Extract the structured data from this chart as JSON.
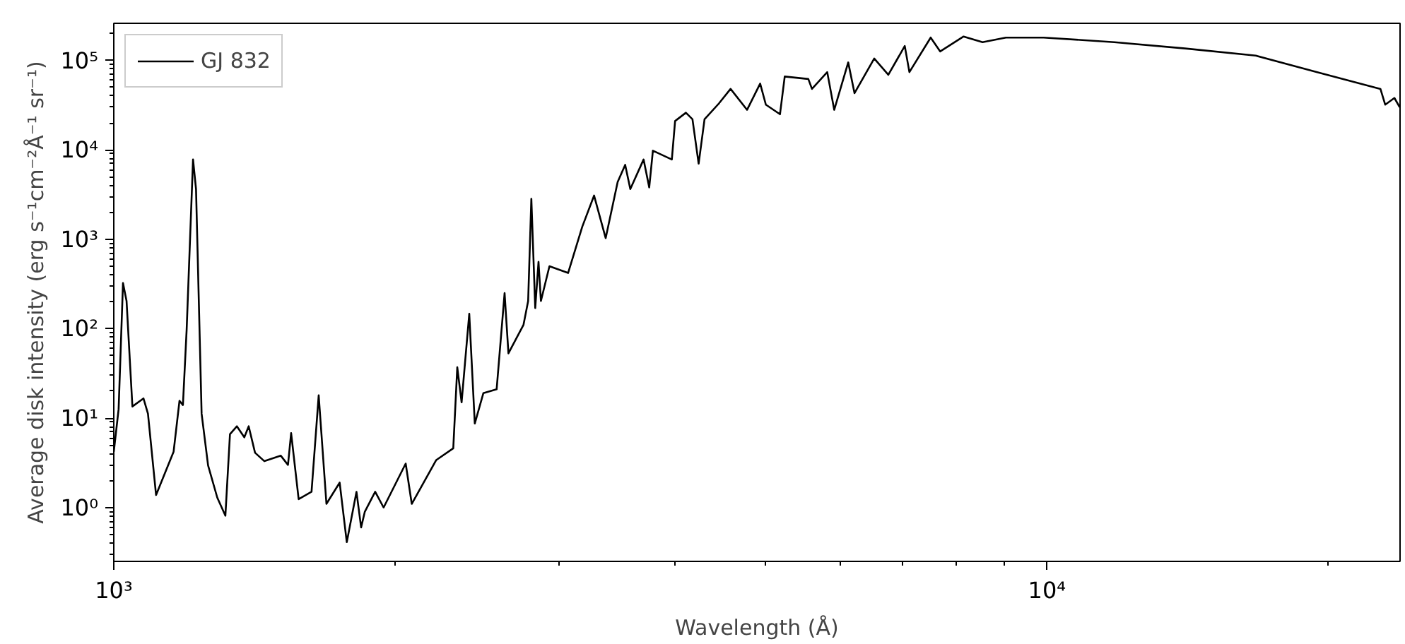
{
  "chart_data": {
    "type": "line",
    "xlabel": "Wavelength (Å)",
    "ylabel": "Average disk intensity (erg s⁻¹cm⁻²Å⁻¹ sr⁻¹)",
    "log": "xy",
    "grid": false,
    "legend": "top left",
    "marker": "none",
    "line_style": "solid",
    "xlim": [
      1000,
      23900
    ],
    "ylim": [
      0.25,
      260000
    ],
    "xticks": [
      {
        "value": 1000,
        "label": "10³"
      },
      {
        "value": 2000,
        "label": null
      },
      {
        "value": 3000,
        "label": null
      },
      {
        "value": 4000,
        "label": null
      },
      {
        "value": 5000,
        "label": null
      },
      {
        "value": 6000,
        "label": null
      },
      {
        "value": 7000,
        "label": null
      },
      {
        "value": 8000,
        "label": null
      },
      {
        "value": 9000,
        "label": null
      },
      {
        "value": 10000,
        "label": "10⁴"
      },
      {
        "value": 20000,
        "label": null
      }
    ],
    "yticks": [
      {
        "value": 0.3,
        "label": null
      },
      {
        "value": 0.4,
        "label": null
      },
      {
        "value": 0.5,
        "label": null
      },
      {
        "value": 0.6,
        "label": null
      },
      {
        "value": 0.7,
        "label": null
      },
      {
        "value": 0.8,
        "label": null
      },
      {
        "value": 0.9,
        "label": null
      },
      {
        "value": 1,
        "label": "10⁰"
      },
      {
        "value": 2,
        "label": null
      },
      {
        "value": 3,
        "label": null
      },
      {
        "value": 4,
        "label": null
      },
      {
        "value": 5,
        "label": null
      },
      {
        "value": 6,
        "label": null
      },
      {
        "value": 7,
        "label": null
      },
      {
        "value": 8,
        "label": null
      },
      {
        "value": 9,
        "label": null
      },
      {
        "value": 10,
        "label": "10¹"
      },
      {
        "value": 20,
        "label": null
      },
      {
        "value": 30,
        "label": null
      },
      {
        "value": 40,
        "label": null
      },
      {
        "value": 50,
        "label": null
      },
      {
        "value": 60,
        "label": null
      },
      {
        "value": 70,
        "label": null
      },
      {
        "value": 80,
        "label": null
      },
      {
        "value": 90,
        "label": null
      },
      {
        "value": 100,
        "label": "10²"
      },
      {
        "value": 200,
        "label": null
      },
      {
        "value": 300,
        "label": null
      },
      {
        "value": 400,
        "label": null
      },
      {
        "value": 500,
        "label": null
      },
      {
        "value": 600,
        "label": null
      },
      {
        "value": 700,
        "label": null
      },
      {
        "value": 800,
        "label": null
      },
      {
        "value": 900,
        "label": null
      },
      {
        "value": 1000,
        "label": "10³"
      },
      {
        "value": 2000,
        "label": null
      },
      {
        "value": 3000,
        "label": null
      },
      {
        "value": 4000,
        "label": null
      },
      {
        "value": 5000,
        "label": null
      },
      {
        "value": 6000,
        "label": null
      },
      {
        "value": 7000,
        "label": null
      },
      {
        "value": 8000,
        "label": null
      },
      {
        "value": 9000,
        "label": null
      },
      {
        "value": 10000,
        "label": "10⁴"
      },
      {
        "value": 20000,
        "label": null
      },
      {
        "value": 30000,
        "label": null
      },
      {
        "value": 40000,
        "label": null
      },
      {
        "value": 50000,
        "label": null
      },
      {
        "value": 60000,
        "label": null
      },
      {
        "value": 70000,
        "label": null
      },
      {
        "value": 80000,
        "label": null
      },
      {
        "value": 90000,
        "label": null
      },
      {
        "value": 100000,
        "label": "10⁵"
      },
      {
        "value": 200000,
        "label": null
      }
    ],
    "series": [
      {
        "name": "GJ 832",
        "color": "#000000",
        "x": [
          1000,
          1012,
          1023,
          1032,
          1047,
          1076,
          1088,
          1110,
          1159,
          1176,
          1186,
          1197,
          1216,
          1225,
          1242,
          1262,
          1291,
          1317,
          1332,
          1355,
          1380,
          1395,
          1417,
          1450,
          1510,
          1537,
          1549,
          1578,
          1629,
          1658,
          1690,
          1746,
          1777,
          1820,
          1841,
          1858,
          1906,
          1946,
          2055,
          2086,
          2216,
          2311,
          2334,
          2359,
          2404,
          2437,
          2489,
          2572,
          2623,
          2648,
          2748,
          2780,
          2802,
          2829,
          2852,
          2869,
          2930,
          3068,
          3177,
          3271,
          3366,
          3467,
          3532,
          3577,
          3696,
          3748,
          3782,
          3963,
          3995,
          4103,
          4170,
          4234,
          4296,
          4451,
          4581,
          4771,
          4928,
          4998,
          5175,
          5236,
          5550,
          5600,
          5815,
          5916,
          6124,
          6220,
          6530,
          6761,
          7041,
          7122,
          7506,
          7683,
          8141,
          8531,
          9036,
          9920,
          11810,
          14060,
          16740,
          19450,
          22770,
          23040,
          23570,
          23880
        ],
        "values": [
          4.2,
          12.6,
          324,
          204,
          13.5,
          16.6,
          11.2,
          1.38,
          4.2,
          15.6,
          14.0,
          98,
          7800,
          3640,
          11.2,
          2.96,
          1.29,
          0.81,
          6.6,
          8.1,
          6.1,
          8.1,
          4.1,
          3.3,
          3.8,
          3.0,
          6.8,
          1.24,
          1.5,
          18,
          1.1,
          1.9,
          0.41,
          1.5,
          0.6,
          0.9,
          1.5,
          1.0,
          3.1,
          1.1,
          3.4,
          4.6,
          37,
          15,
          147,
          8.7,
          19,
          21,
          250,
          53,
          110,
          204,
          2830,
          170,
          560,
          204,
          500,
          420,
          1380,
          3080,
          1030,
          4370,
          6800,
          3640,
          7800,
          3800,
          9800,
          7800,
          21000,
          26000,
          22000,
          7000,
          22000,
          33000,
          48000,
          28000,
          55000,
          32000,
          25000,
          66000,
          62000,
          48000,
          74000,
          28000,
          95000,
          43000,
          105000,
          69000,
          145000,
          74000,
          180000,
          126000,
          185000,
          160000,
          180000,
          180000,
          160000,
          136000,
          113000,
          74000,
          48000,
          32000,
          38000,
          30000
        ]
      }
    ]
  }
}
